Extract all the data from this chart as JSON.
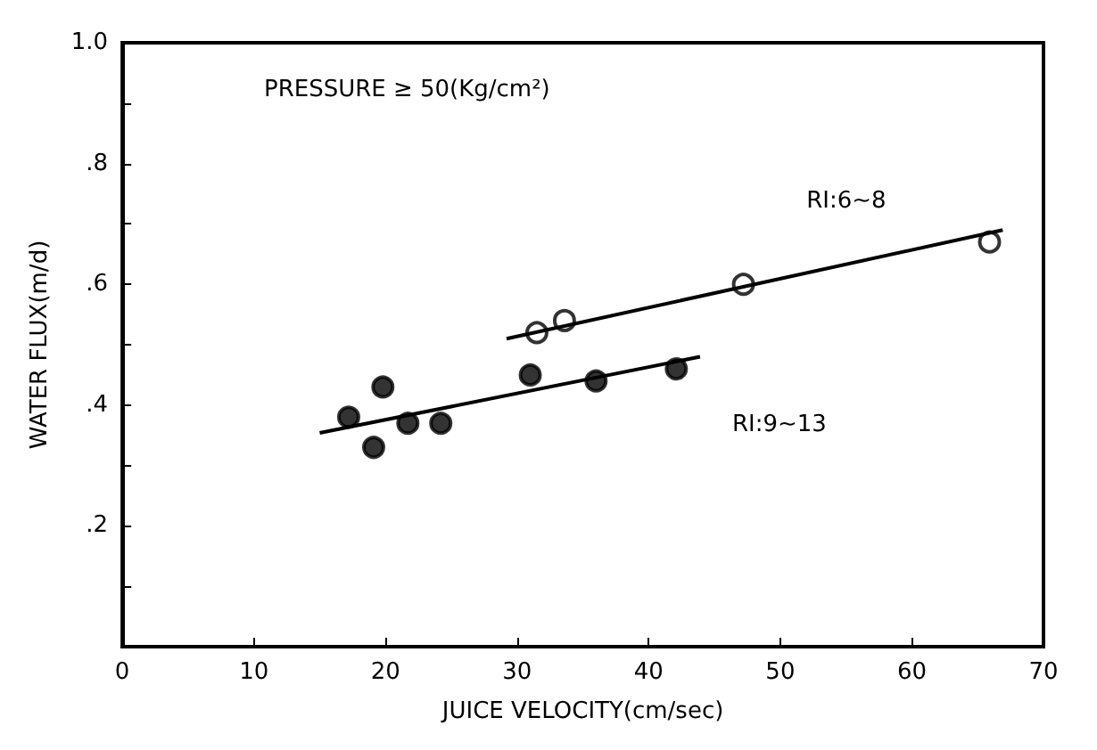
{
  "chart_data": {
    "type": "scatter",
    "xlabel": "JUICE VELOCITY(cm/sec)",
    "ylabel": "WATER FLUX(m/d)",
    "xlim": [
      0,
      70
    ],
    "xticks": [
      0,
      10,
      20,
      30,
      40,
      50,
      60,
      70
    ],
    "ylim": [
      0,
      1
    ],
    "yticks": [
      {
        "value": 0.1,
        "label": null
      },
      {
        "value": 0.2,
        "label": ".2"
      },
      {
        "value": 0.3,
        "label": null
      },
      {
        "value": 0.4,
        "label": ".4"
      },
      {
        "value": 0.5,
        "label": null
      },
      {
        "value": 0.6,
        "label": ".6"
      },
      {
        "value": 0.7,
        "label": null
      },
      {
        "value": 0.8,
        "label": ".8"
      },
      {
        "value": 0.9,
        "label": null
      },
      {
        "value": 1.0,
        "label": "1.0"
      }
    ],
    "grid": false,
    "legend": false,
    "marker": "circle",
    "annotations": [
      "PRESSURE ≥ 50(Kg/cm²)"
    ],
    "series": [
      {
        "color": "#000000",
        "x": [
          17.2,
          19.1,
          19.8,
          21.7,
          24.2,
          31.0,
          36.0,
          42.1
        ],
        "values": [
          0.38,
          0.33,
          0.43,
          0.37,
          0.37,
          0.45,
          0.44,
          0.46
        ]
      },
      {
        "color": "#ffffff",
        "x": [
          31.5,
          33.6,
          47.2,
          65.9
        ],
        "values": [
          0.52,
          0.54,
          0.6,
          0.67
        ]
      },
      {
        "type": "line",
        "name": "RI:9~13",
        "marker": "none",
        "line_style": "solid",
        "color": "#000000",
        "x": [
          15,
          43.9
        ],
        "values": [
          0.354,
          0.48
        ]
      },
      {
        "type": "line",
        "name": "RI:6~8",
        "marker": "none",
        "line_style": "solid",
        "color": "#000000",
        "x": [
          29.2,
          66.9
        ],
        "values": [
          0.51,
          0.69
        ]
      }
    ]
  }
}
